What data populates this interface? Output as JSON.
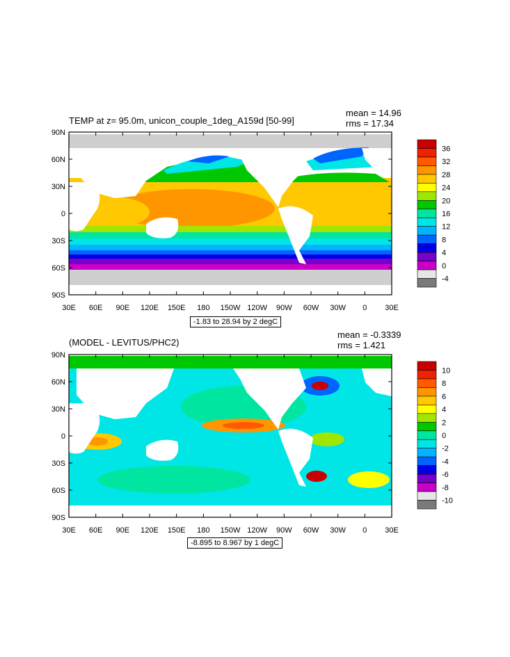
{
  "panel1": {
    "title": "TEMP at z=  95.0m, unicon_couple_1deg_A159d [50-99]",
    "mean": "mean = 14.96",
    "rms": "rms = 17.34",
    "range": "-1.83 to 28.94 by 2 degC",
    "colorbar_labels": [
      "36",
      "32",
      "28",
      "24",
      "20",
      "16",
      "12",
      "8",
      "4",
      "0",
      "-4"
    ],
    "colorbar_colors": [
      "#c80000",
      "#f02000",
      "#ff5a00",
      "#ff9600",
      "#ffc800",
      "#ffff00",
      "#a0e600",
      "#00c800",
      "#00e6a0",
      "#00e6e6",
      "#00b4ff",
      "#0064ff",
      "#0000e6",
      "#7800c8",
      "#c800c8",
      "#e6e6e6",
      "#7a7a7a"
    ]
  },
  "panel2": {
    "title": "(MODEL - LEVITUS/PHC2)",
    "mean": "mean = -0.3339",
    "rms": "rms = 1.421",
    "range": "-8.895 to 8.967 by 1 degC",
    "colorbar_labels": [
      "10",
      "8",
      "6",
      "4",
      "2",
      "0",
      "-2",
      "-4",
      "-6",
      "-8",
      "-10"
    ],
    "colorbar_colors": [
      "#c80000",
      "#f02000",
      "#ff5a00",
      "#ff9600",
      "#ffc800",
      "#ffff00",
      "#a0e600",
      "#00c800",
      "#00e6a0",
      "#00e6e6",
      "#00b4ff",
      "#0064ff",
      "#0000e6",
      "#7800c8",
      "#c800c8",
      "#e6e6e6",
      "#7a7a7a"
    ]
  },
  "lat_labels": [
    "90N",
    "60N",
    "30N",
    "0",
    "30S",
    "60S",
    "90S"
  ],
  "lon_labels": [
    "30E",
    "60E",
    "90E",
    "120E",
    "150E",
    "180",
    "150W",
    "120W",
    "90W",
    "60W",
    "30W",
    "0",
    "30E"
  ]
}
